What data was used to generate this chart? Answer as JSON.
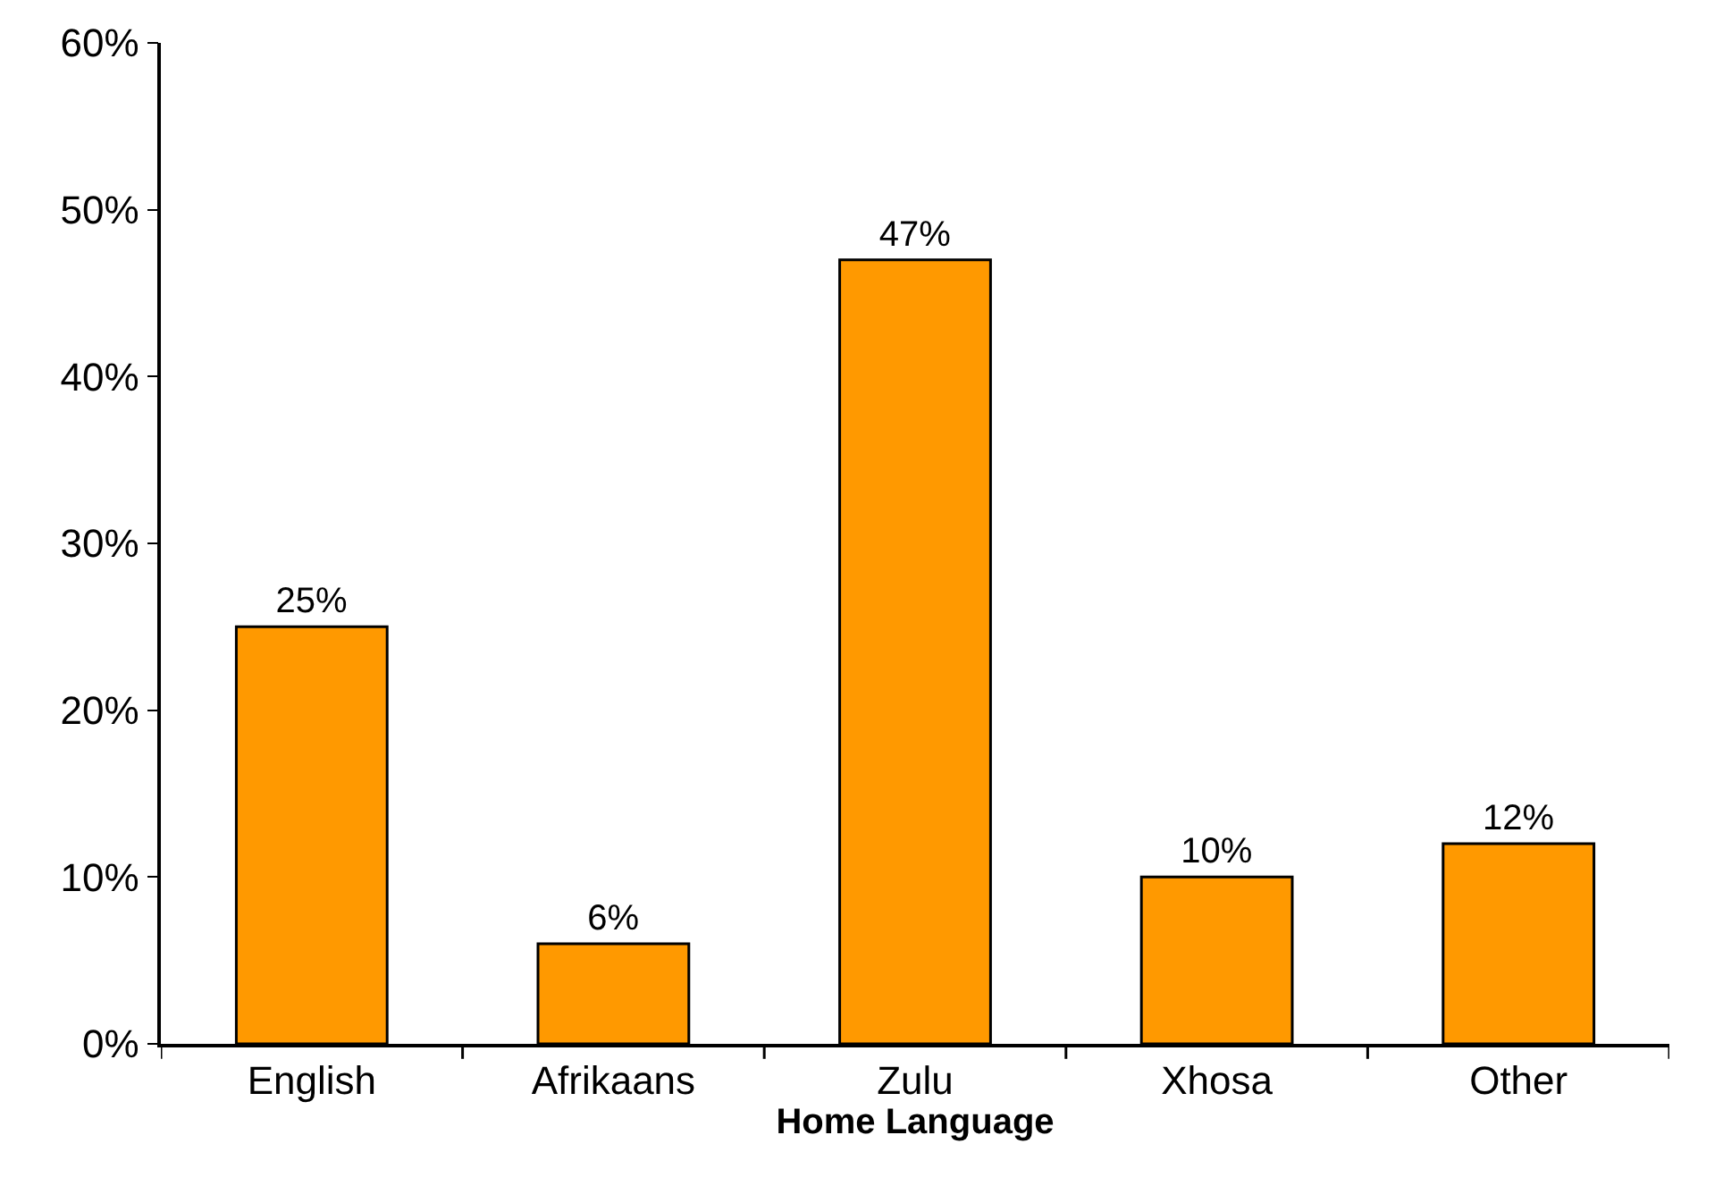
{
  "chart_data": {
    "type": "bar",
    "xlabel": "Home Language",
    "categories": [
      "English",
      "Afrikaans",
      "Zulu",
      "Xhosa",
      "Other"
    ],
    "values": [
      25,
      6,
      47,
      10,
      12
    ],
    "value_labels": [
      "25%",
      "6%",
      "47%",
      "10%",
      "12%"
    ],
    "color": "#ff9900",
    "ylim": [
      0,
      60
    ],
    "yticks": [
      {
        "value": 0,
        "label": "0%"
      },
      {
        "value": 10,
        "label": "10%"
      },
      {
        "value": 20,
        "label": "20%"
      },
      {
        "value": 30,
        "label": "30%"
      },
      {
        "value": 40,
        "label": "40%"
      },
      {
        "value": 50,
        "label": "50%"
      },
      {
        "value": 60,
        "label": "60%"
      }
    ]
  }
}
